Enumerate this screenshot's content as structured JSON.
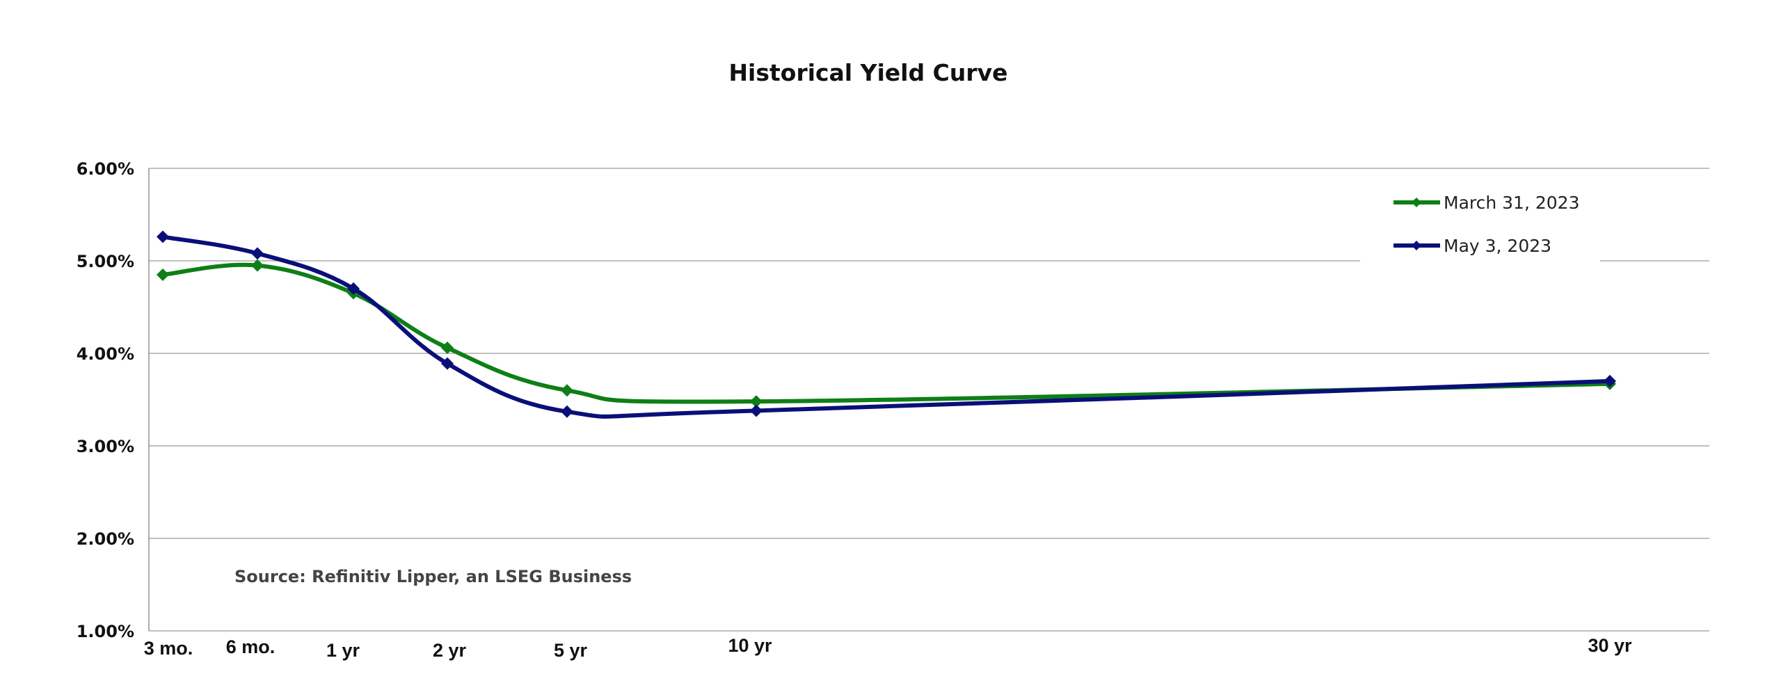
{
  "chart_data": {
    "type": "line",
    "title": "Historical Yield Curve",
    "categories": [
      "3 mo.",
      "6 mo.",
      "1 yr",
      "2 yr",
      "5 yr",
      "10 yr",
      "30 yr"
    ],
    "x": [
      0.25,
      0.5,
      1,
      2,
      5,
      10,
      30
    ],
    "series": [
      {
        "name": "March 31, 2023",
        "color": "#0e7f16",
        "values": [
          4.85,
          4.95,
          4.65,
          4.06,
          3.6,
          3.48,
          3.67
        ]
      },
      {
        "name": "May 3, 2023",
        "color": "#0a0f78",
        "values": [
          5.26,
          5.08,
          4.7,
          3.89,
          3.37,
          3.38,
          3.7
        ]
      }
    ],
    "y_ticks": [
      "6.00%",
      "5.00%",
      "4.00%",
      "3.00%",
      "2.00%",
      "1.00%"
    ],
    "ylim": [
      1,
      6
    ],
    "grid": true,
    "legend_position": "top-right",
    "annotation": "Source: Refinitiv Lipper, an LSEG Business"
  }
}
